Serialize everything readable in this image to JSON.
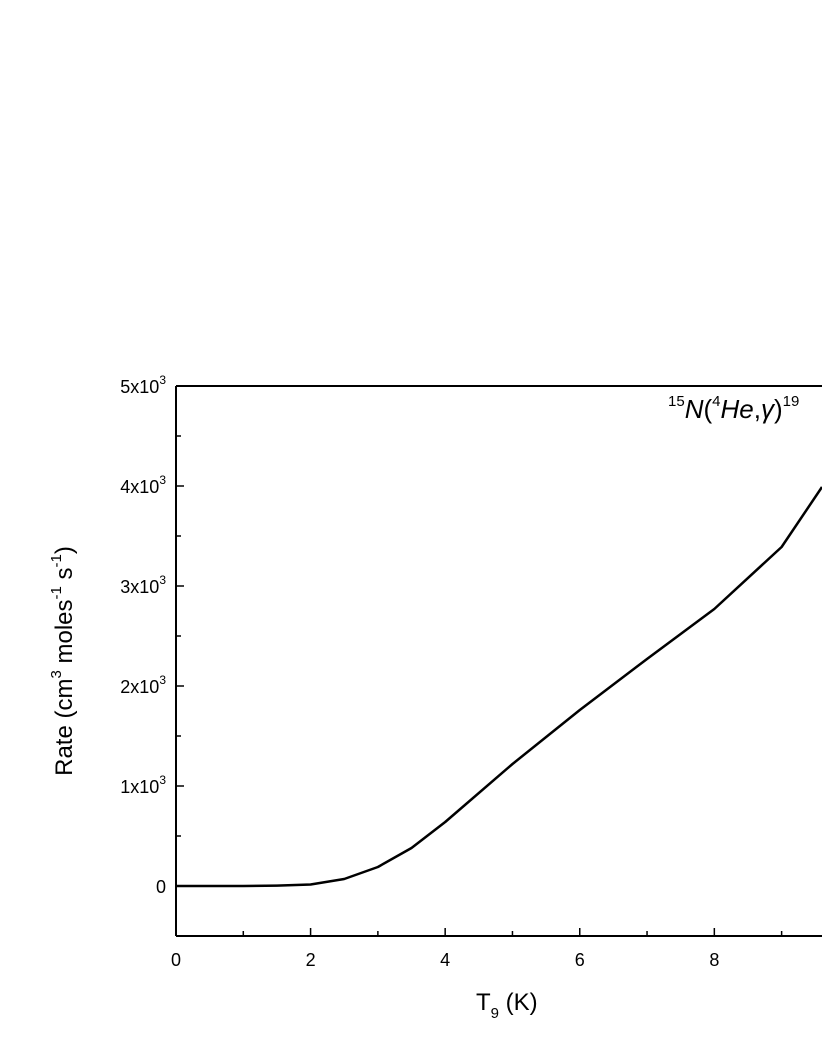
{
  "chart_data": {
    "type": "line",
    "title": "",
    "annotation": {
      "mass_a": "15",
      "element_a": "N",
      "open": "(",
      "mass_b": "4",
      "projectile": "He",
      "sep": ",",
      "gamma": "γ",
      "close": ")",
      "mass_c": "19"
    },
    "xlabel": {
      "base": "T",
      "sub": "9",
      "unit": " (K)"
    },
    "ylabel": {
      "prefix": "Rate (cm",
      "cm_exp": "3",
      "moles": "  moles",
      "moles_exp": "-1",
      "s": " s",
      "s_exp": "-1",
      "suffix": ")"
    },
    "xlim": [
      0,
      9.6
    ],
    "ylim": [
      -500,
      5000
    ],
    "x_ticks": [
      {
        "value": 0,
        "label": "0"
      },
      {
        "value": 2,
        "label": "2"
      },
      {
        "value": 4,
        "label": "4"
      },
      {
        "value": 6,
        "label": "6"
      },
      {
        "value": 8,
        "label": "8"
      }
    ],
    "y_ticks": [
      {
        "value": 0,
        "label": "0",
        "base": "",
        "exp": ""
      },
      {
        "value": 1000,
        "label": "",
        "base": "1x10",
        "exp": "3"
      },
      {
        "value": 2000,
        "label": "",
        "base": "2x10",
        "exp": "3"
      },
      {
        "value": 3000,
        "label": "",
        "base": "3x10",
        "exp": "3"
      },
      {
        "value": 4000,
        "label": "",
        "base": "4x10",
        "exp": "3"
      },
      {
        "value": 5000,
        "label": "",
        "base": "5x10",
        "exp": "3"
      }
    ],
    "series": [
      {
        "x": [
          0,
          0.5,
          1.0,
          1.5,
          2.0,
          2.5,
          3.0,
          3.5,
          4.0,
          5.0,
          6.0,
          7.0,
          8.0,
          9.0,
          9.6
        ],
        "y": [
          0,
          0,
          0,
          4,
          15,
          70,
          190,
          380,
          640,
          1220,
          1760,
          2270,
          2770,
          3390,
          3990
        ]
      }
    ]
  }
}
